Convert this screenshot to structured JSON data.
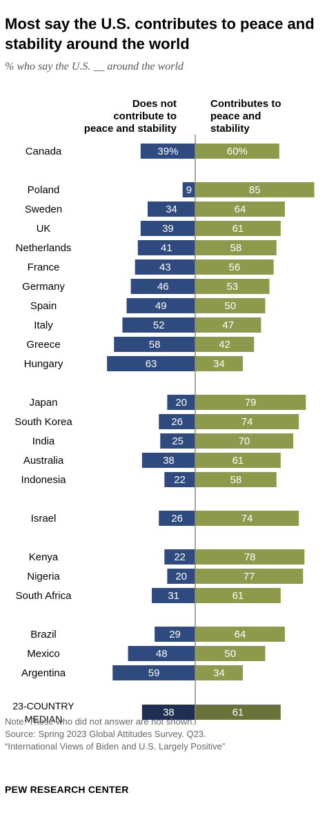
{
  "title": "Most say the U.S. contributes to peace and stability around the world",
  "subtitle": "% who say the U.S. __ around the world",
  "column_headers": {
    "left": [
      "Does not",
      "contribute to",
      "peace and stability"
    ],
    "right": [
      "Contributes to",
      "peace and",
      "stability"
    ]
  },
  "notes": [
    "Note: Those who did not answer are not shown.",
    "Source: Spring 2023 Global Attitudes Survey. Q23.",
    "“International Views of Biden and U.S. Largely Positive”"
  ],
  "brand": "PEW RESEARCH CENTER",
  "colors": {
    "does_not": "#2f4a7e",
    "contributes": "#8d9a4b",
    "median_does_not": "#1d2f52",
    "median_contributes": "#687339",
    "axis": "#8a8a8a"
  },
  "chart_data": {
    "type": "bar",
    "orientation": "diverging-horizontal",
    "series": [
      {
        "name": "Does not contribute to peace and stability",
        "values": [
          39,
          9,
          34,
          39,
          41,
          43,
          46,
          49,
          52,
          58,
          63,
          20,
          26,
          25,
          38,
          22,
          26,
          22,
          20,
          31,
          29,
          48,
          59,
          38
        ]
      },
      {
        "name": "Contributes to peace and stability",
        "values": [
          60,
          85,
          64,
          61,
          58,
          56,
          53,
          50,
          47,
          42,
          34,
          79,
          74,
          70,
          61,
          58,
          74,
          78,
          77,
          61,
          64,
          50,
          34,
          61
        ]
      }
    ],
    "rows": [
      {
        "label": [
          "Canada"
        ],
        "left": 39,
        "right": 60,
        "pct": true
      },
      {
        "label": [
          "Poland"
        ],
        "left": 9,
        "right": 85
      },
      {
        "label": [
          "Sweden"
        ],
        "left": 34,
        "right": 64
      },
      {
        "label": [
          "UK"
        ],
        "left": 39,
        "right": 61
      },
      {
        "label": [
          "Netherlands"
        ],
        "left": 41,
        "right": 58
      },
      {
        "label": [
          "France"
        ],
        "left": 43,
        "right": 56
      },
      {
        "label": [
          "Germany"
        ],
        "left": 46,
        "right": 53
      },
      {
        "label": [
          "Spain"
        ],
        "left": 49,
        "right": 50
      },
      {
        "label": [
          "Italy"
        ],
        "left": 52,
        "right": 47
      },
      {
        "label": [
          "Greece"
        ],
        "left": 58,
        "right": 42
      },
      {
        "label": [
          "Hungary"
        ],
        "left": 63,
        "right": 34
      },
      {
        "label": [
          "Japan"
        ],
        "left": 20,
        "right": 79
      },
      {
        "label": [
          "South Korea"
        ],
        "left": 26,
        "right": 74
      },
      {
        "label": [
          "India"
        ],
        "left": 25,
        "right": 70
      },
      {
        "label": [
          "Australia"
        ],
        "left": 38,
        "right": 61
      },
      {
        "label": [
          "Indonesia"
        ],
        "left": 22,
        "right": 58
      },
      {
        "label": [
          "Israel"
        ],
        "left": 26,
        "right": 74
      },
      {
        "label": [
          "Kenya"
        ],
        "left": 22,
        "right": 78
      },
      {
        "label": [
          "Nigeria"
        ],
        "left": 20,
        "right": 77
      },
      {
        "label": [
          "South Africa"
        ],
        "left": 31,
        "right": 61
      },
      {
        "label": [
          "Brazil"
        ],
        "left": 29,
        "right": 64
      },
      {
        "label": [
          "Mexico"
        ],
        "left": 48,
        "right": 50
      },
      {
        "label": [
          "Argentina"
        ],
        "left": 59,
        "right": 34
      },
      {
        "label": [
          "23-COUNTRY",
          "MEDIAN"
        ],
        "left": 38,
        "right": 61,
        "median": true
      }
    ],
    "grid": false,
    "legend": "column headers above bars"
  }
}
